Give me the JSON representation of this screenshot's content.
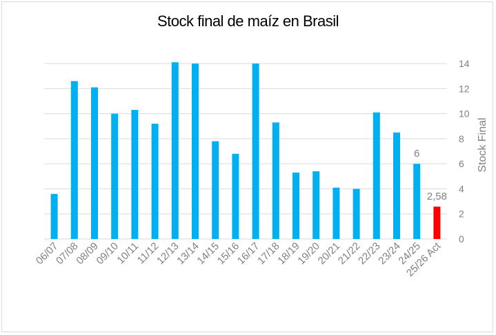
{
  "chart_data": {
    "type": "bar",
    "title": "Stock final de maíz en Brasil",
    "xlabel": "",
    "ylabel": "Stock Final",
    "ylim": [
      0,
      14
    ],
    "yticks": [
      0,
      2,
      4,
      6,
      8,
      10,
      12,
      14
    ],
    "y_axis_position": "right",
    "grid": true,
    "legend": "none",
    "categories": [
      "06/07",
      "07/08",
      "08/09",
      "09/10",
      "10/11",
      "11/12",
      "12/13",
      "13/14",
      "14/15",
      "15/16",
      "16/17",
      "17/18",
      "18/19",
      "19/20",
      "20/21",
      "21/22",
      "22/23",
      "23/24",
      "24/25",
      "25/26 Act"
    ],
    "values": [
      3.6,
      12.6,
      12.1,
      10.0,
      10.3,
      9.2,
      14.1,
      14.0,
      7.8,
      6.8,
      14.0,
      9.3,
      5.3,
      5.4,
      4.1,
      4.0,
      10.1,
      8.5,
      6.0,
      2.58
    ],
    "data_labels": [
      {
        "index": 18,
        "text": "6"
      },
      {
        "index": 19,
        "text": "2,58"
      }
    ],
    "colors": {
      "bar": "#00b0f0",
      "highlight": "#ff0000",
      "grid": "#d9d9d9",
      "text": "#808080"
    },
    "highlight_index": 19
  }
}
